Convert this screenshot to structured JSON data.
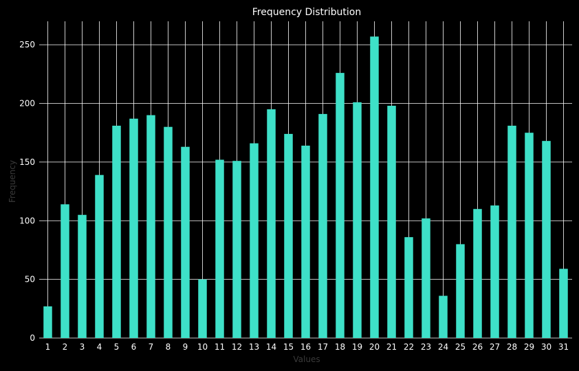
{
  "chart_data": {
    "type": "bar",
    "title": "Frequency Distribution",
    "xlabel": "Values",
    "ylabel": "Frequency",
    "categories": [
      "1",
      "2",
      "3",
      "4",
      "5",
      "6",
      "7",
      "8",
      "9",
      "10",
      "11",
      "12",
      "13",
      "14",
      "15",
      "16",
      "17",
      "18",
      "19",
      "20",
      "21",
      "22",
      "23",
      "24",
      "25",
      "26",
      "27",
      "28",
      "29",
      "30",
      "31"
    ],
    "values": [
      27,
      114,
      105,
      139,
      181,
      187,
      190,
      180,
      163,
      50,
      152,
      151,
      166,
      195,
      174,
      164,
      191,
      226,
      201,
      257,
      198,
      86,
      102,
      36,
      80,
      110,
      113,
      181,
      175,
      168,
      59
    ],
    "ylim": [
      0,
      270
    ],
    "yticks": [
      0,
      50,
      100,
      150,
      200,
      250
    ],
    "grid": true,
    "bar_color": "#3ee0c8",
    "background_color": "#000000",
    "grid_color": "#ffffff"
  }
}
